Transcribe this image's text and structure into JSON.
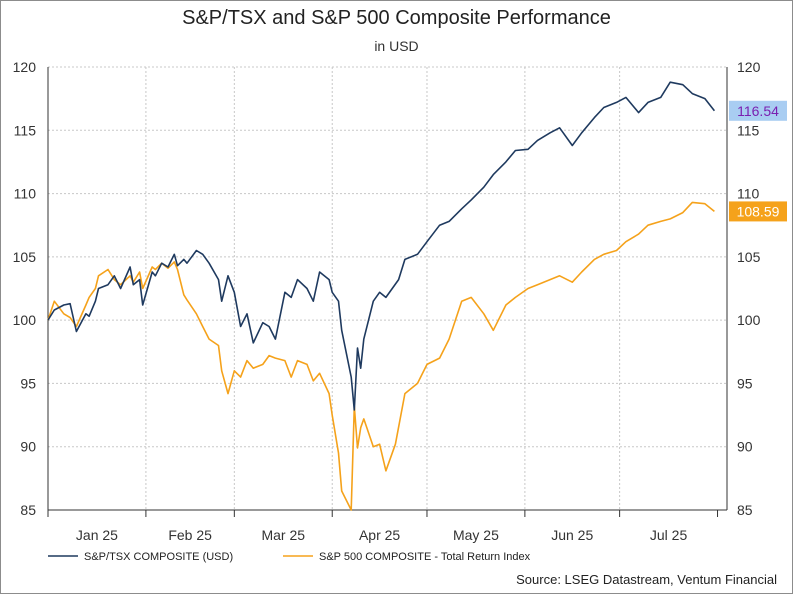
{
  "chart_data": {
    "type": "line",
    "title": "S&P/TSX and S&P 500 Composite Performance",
    "subtitle": "in USD",
    "x_tick_labels": [
      "Jan 25",
      "Feb 25",
      "Mar 25",
      "Apr 25",
      "May 25",
      "Jun 25",
      "Jul 25"
    ],
    "y_left": {
      "min": 85,
      "max": 120,
      "ticks": [
        85,
        90,
        95,
        100,
        105,
        110,
        115,
        120
      ]
    },
    "y_right": {
      "min": 85,
      "max": 120,
      "ticks": [
        85,
        90,
        95,
        100,
        105,
        110,
        115,
        120
      ]
    },
    "grid": true,
    "legend_position": "bottom",
    "source": "Source: LSEG Datastream, Ventum Financial",
    "series": [
      {
        "name": "S&P/TSX COMPOSITE (USD)",
        "color": "#1f3a5f",
        "axis": "left",
        "last_value_label": "116.54",
        "label_bg": "#a9cdf2",
        "label_color": "#7a1fb0",
        "x": [
          "2025-01-01",
          "2025-01-03",
          "2025-01-06",
          "2025-01-08",
          "2025-01-10",
          "2025-01-13",
          "2025-01-14",
          "2025-01-16",
          "2025-01-17",
          "2025-01-20",
          "2025-01-22",
          "2025-01-24",
          "2025-01-27",
          "2025-01-28",
          "2025-01-30",
          "2025-01-31",
          "2025-02-03",
          "2025-02-04",
          "2025-02-06",
          "2025-02-08",
          "2025-02-10",
          "2025-02-11",
          "2025-02-13",
          "2025-02-14",
          "2025-02-17",
          "2025-02-19",
          "2025-02-21",
          "2025-02-24",
          "2025-02-25",
          "2025-02-27",
          "2025-03-01",
          "2025-03-03",
          "2025-03-05",
          "2025-03-07",
          "2025-03-10",
          "2025-03-12",
          "2025-03-14",
          "2025-03-17",
          "2025-03-19",
          "2025-03-21",
          "2025-03-24",
          "2025-03-26",
          "2025-03-28",
          "2025-03-31",
          "2025-04-01",
          "2025-04-03",
          "2025-04-04",
          "2025-04-07",
          "2025-04-08",
          "2025-04-09",
          "2025-04-10",
          "2025-04-11",
          "2025-04-14",
          "2025-04-16",
          "2025-04-18",
          "2025-04-22",
          "2025-04-24",
          "2025-04-28",
          "2025-05-01",
          "2025-05-05",
          "2025-05-08",
          "2025-05-12",
          "2025-05-15",
          "2025-05-19",
          "2025-05-22",
          "2025-05-26",
          "2025-05-29",
          "2025-06-02",
          "2025-06-05",
          "2025-06-09",
          "2025-06-12",
          "2025-06-16",
          "2025-06-19",
          "2025-06-23",
          "2025-06-26",
          "2025-06-30",
          "2025-07-03",
          "2025-07-07",
          "2025-07-10",
          "2025-07-14",
          "2025-07-17",
          "2025-07-21",
          "2025-07-24",
          "2025-07-28",
          "2025-07-31"
        ],
        "values": [
          100,
          100.8,
          101.2,
          101.3,
          99.1,
          100.5,
          100.3,
          101.5,
          102.5,
          102.8,
          103.5,
          102.5,
          104.2,
          102.8,
          103.2,
          101.2,
          103.8,
          103.5,
          104.5,
          104.2,
          105.2,
          104.3,
          104.8,
          104.5,
          105.5,
          105.2,
          104.5,
          103.2,
          101.5,
          103.5,
          102.2,
          99.5,
          100.5,
          98.2,
          99.8,
          99.5,
          98.5,
          102.2,
          101.8,
          103.2,
          102.5,
          101.5,
          103.8,
          103.2,
          102.2,
          101.5,
          99.2,
          95.5,
          92.9,
          97.8,
          96.2,
          98.5,
          101.5,
          102.2,
          101.8,
          103.2,
          104.8,
          105.2,
          106.2,
          107.5,
          107.8,
          108.8,
          109.5,
          110.5,
          111.5,
          112.5,
          113.4,
          113.5,
          114.2,
          114.8,
          115.2,
          113.8,
          114.8,
          116.0,
          116.8,
          117.2,
          117.6,
          116.4,
          117.2,
          117.6,
          118.8,
          118.6,
          117.9,
          117.5,
          116.54
        ]
      },
      {
        "name": "S&P 500 COMPOSITE - Total Return Index",
        "color": "#f5a21b",
        "axis": "right",
        "last_value_label": "108.59",
        "label_bg": "#f5a21b",
        "label_color": "#ffffff",
        "x": [
          "2025-01-01",
          "2025-01-03",
          "2025-01-06",
          "2025-01-08",
          "2025-01-10",
          "2025-01-13",
          "2025-01-14",
          "2025-01-16",
          "2025-01-17",
          "2025-01-20",
          "2025-01-22",
          "2025-01-24",
          "2025-01-27",
          "2025-01-28",
          "2025-01-30",
          "2025-01-31",
          "2025-02-03",
          "2025-02-04",
          "2025-02-06",
          "2025-02-08",
          "2025-02-10",
          "2025-02-11",
          "2025-02-13",
          "2025-02-14",
          "2025-02-17",
          "2025-02-19",
          "2025-02-21",
          "2025-02-24",
          "2025-02-25",
          "2025-02-27",
          "2025-03-01",
          "2025-03-03",
          "2025-03-05",
          "2025-03-07",
          "2025-03-10",
          "2025-03-12",
          "2025-03-14",
          "2025-03-17",
          "2025-03-19",
          "2025-03-21",
          "2025-03-24",
          "2025-03-26",
          "2025-03-28",
          "2025-03-31",
          "2025-04-01",
          "2025-04-03",
          "2025-04-04",
          "2025-04-07",
          "2025-04-08",
          "2025-04-09",
          "2025-04-10",
          "2025-04-11",
          "2025-04-14",
          "2025-04-16",
          "2025-04-18",
          "2025-04-21",
          "2025-04-24",
          "2025-04-28",
          "2025-05-01",
          "2025-05-05",
          "2025-05-08",
          "2025-05-12",
          "2025-05-15",
          "2025-05-19",
          "2025-05-22",
          "2025-05-26",
          "2025-05-29",
          "2025-06-02",
          "2025-06-05",
          "2025-06-09",
          "2025-06-12",
          "2025-06-16",
          "2025-06-19",
          "2025-06-23",
          "2025-06-26",
          "2025-06-30",
          "2025-07-03",
          "2025-07-07",
          "2025-07-10",
          "2025-07-14",
          "2025-07-17",
          "2025-07-21",
          "2025-07-24",
          "2025-07-28",
          "2025-07-31"
        ],
        "values": [
          100,
          101.5,
          100.5,
          100.2,
          99.5,
          101.2,
          101.8,
          102.5,
          103.5,
          104.0,
          103.2,
          102.8,
          103.5,
          103.0,
          103.8,
          102.5,
          104.2,
          104.0,
          104.5,
          104.1,
          104.6,
          104.0,
          102.0,
          101.6,
          100.5,
          99.5,
          98.5,
          98.0,
          96.0,
          94.2,
          96.0,
          95.5,
          96.8,
          96.2,
          96.5,
          97.2,
          97.0,
          96.8,
          95.5,
          96.8,
          96.5,
          95.2,
          95.8,
          94.2,
          92.5,
          89.5,
          86.5,
          85.0,
          93.2,
          89.9,
          91.5,
          92.2,
          90.0,
          90.2,
          88.1,
          90.2,
          94.2,
          95.0,
          96.5,
          97.0,
          98.5,
          101.5,
          101.8,
          100.5,
          99.2,
          101.2,
          101.8,
          102.5,
          102.8,
          103.2,
          103.5,
          103.0,
          103.8,
          104.8,
          105.2,
          105.5,
          106.2,
          106.8,
          107.5,
          107.8,
          108.0,
          108.5,
          109.3,
          109.2,
          108.59
        ]
      }
    ]
  }
}
